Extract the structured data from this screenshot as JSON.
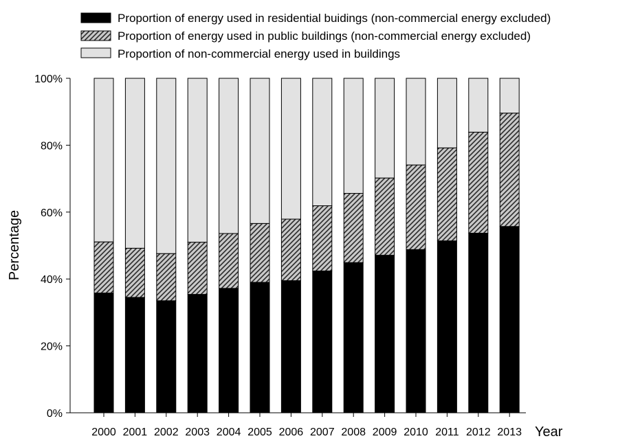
{
  "chart_data": {
    "type": "bar",
    "stacked": true,
    "title": "",
    "xlabel": "Year",
    "ylabel": "Percentage",
    "ylim": [
      0,
      100
    ],
    "y_ticks": [
      "0%",
      "20%",
      "40%",
      "60%",
      "80%",
      "100%"
    ],
    "y_tick_values": [
      0,
      20,
      40,
      60,
      80,
      100
    ],
    "categories": [
      "2000",
      "2001",
      "2002",
      "2003",
      "2004",
      "2005",
      "2006",
      "2007",
      "2008",
      "2009",
      "2010",
      "2011",
      "2012",
      "2013"
    ],
    "series": [
      {
        "name": "Proportion of energy used in residential buidings (non-commercial energy excluded)",
        "fill": "solid",
        "color": "#000000",
        "values": [
          35.8,
          34.5,
          33.5,
          35.4,
          37.2,
          39.0,
          39.5,
          42.4,
          44.9,
          47.1,
          48.8,
          51.4,
          53.7,
          55.7
        ]
      },
      {
        "name": "Proportion of energy used in public buildings  (non-commercial energy excluded)",
        "fill": "hatch",
        "color": "#c8c8c8",
        "values": [
          15.3,
          14.7,
          14.1,
          15.6,
          16.4,
          17.6,
          18.4,
          19.5,
          20.7,
          23.1,
          25.3,
          27.8,
          30.2,
          33.9
        ]
      },
      {
        "name": "Proportion of non-commercial energy used in buildings",
        "fill": "light",
        "color": "#e2e2e2",
        "values": [
          48.9,
          50.8,
          52.4,
          49.0,
          46.4,
          43.4,
          42.1,
          38.1,
          34.4,
          29.8,
          25.9,
          20.8,
          16.1,
          10.4
        ]
      }
    ],
    "legend_position": "top",
    "grid": false
  }
}
